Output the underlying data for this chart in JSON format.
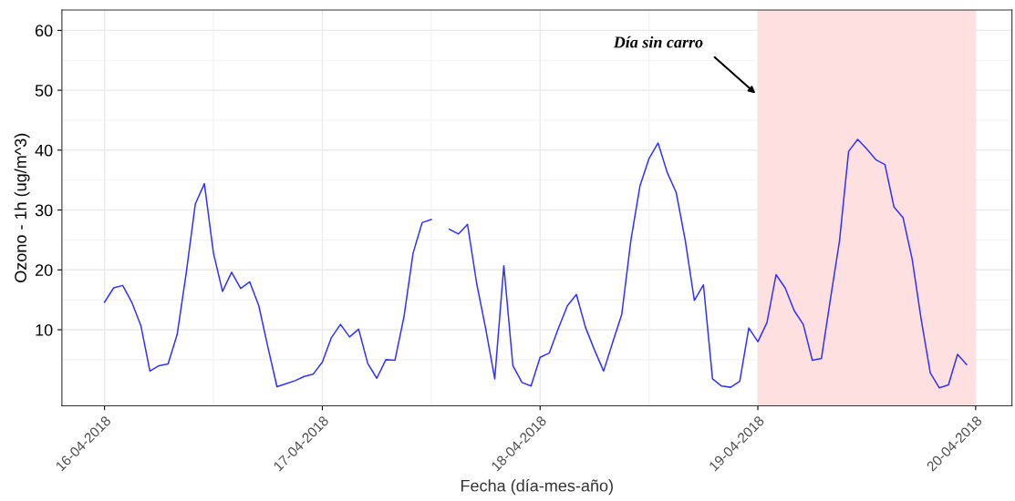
{
  "chart_data": {
    "type": "line",
    "xlabel": "Fecha (día-mes-año)",
    "ylabel": "Ozono - 1h (ug/m^3)",
    "x": [
      "2018-04-16T00:00",
      "2018-04-16T01:00",
      "2018-04-16T02:00",
      "2018-04-16T03:00",
      "2018-04-16T04:00",
      "2018-04-16T05:00",
      "2018-04-16T06:00",
      "2018-04-16T07:00",
      "2018-04-16T08:00",
      "2018-04-16T09:00",
      "2018-04-16T10:00",
      "2018-04-16T11:00",
      "2018-04-16T12:00",
      "2018-04-16T13:00",
      "2018-04-16T14:00",
      "2018-04-16T15:00",
      "2018-04-16T16:00",
      "2018-04-16T17:00",
      "2018-04-16T18:00",
      "2018-04-16T19:00",
      "2018-04-16T20:00",
      "2018-04-16T21:00",
      "2018-04-16T22:00",
      "2018-04-16T23:00",
      "2018-04-17T00:00",
      "2018-04-17T01:00",
      "2018-04-17T02:00",
      "2018-04-17T03:00",
      "2018-04-17T04:00",
      "2018-04-17T05:00",
      "2018-04-17T06:00",
      "2018-04-17T07:00",
      "2018-04-17T08:00",
      "2018-04-17T09:00",
      "2018-04-17T10:00",
      "2018-04-17T11:00",
      "2018-04-17T12:00",
      "2018-04-17T13:00",
      "2018-04-17T14:00",
      "2018-04-17T15:00",
      "2018-04-17T16:00",
      "2018-04-17T17:00",
      "2018-04-17T18:00",
      "2018-04-17T19:00",
      "2018-04-17T20:00",
      "2018-04-17T21:00",
      "2018-04-17T22:00",
      "2018-04-17T23:00",
      "2018-04-18T00:00",
      "2018-04-18T01:00",
      "2018-04-18T02:00",
      "2018-04-18T03:00",
      "2018-04-18T04:00",
      "2018-04-18T05:00",
      "2018-04-18T06:00",
      "2018-04-18T07:00",
      "2018-04-18T08:00",
      "2018-04-18T09:00",
      "2018-04-18T10:00",
      "2018-04-18T11:00",
      "2018-04-18T12:00",
      "2018-04-18T13:00",
      "2018-04-18T14:00",
      "2018-04-18T15:00",
      "2018-04-18T16:00",
      "2018-04-18T17:00",
      "2018-04-18T18:00",
      "2018-04-18T19:00",
      "2018-04-18T20:00",
      "2018-04-18T21:00",
      "2018-04-18T22:00",
      "2018-04-18T23:00",
      "2018-04-19T00:00",
      "2018-04-19T01:00",
      "2018-04-19T02:00",
      "2018-04-19T03:00",
      "2018-04-19T04:00",
      "2018-04-19T05:00",
      "2018-04-19T06:00",
      "2018-04-19T07:00",
      "2018-04-19T08:00",
      "2018-04-19T09:00",
      "2018-04-19T10:00",
      "2018-04-19T11:00",
      "2018-04-19T12:00",
      "2018-04-19T13:00",
      "2018-04-19T14:00",
      "2018-04-19T15:00",
      "2018-04-19T16:00",
      "2018-04-19T17:00",
      "2018-04-19T18:00",
      "2018-04-19T19:00",
      "2018-04-19T20:00",
      "2018-04-19T21:00",
      "2018-04-19T22:00",
      "2018-04-19T23:00"
    ],
    "series": [
      {
        "color": "#3333ff",
        "values": [
          14.6,
          17.0,
          17.4,
          14.6,
          10.7,
          3.1,
          4.0,
          4.3,
          9.2,
          19.5,
          31.0,
          34.4,
          22.8,
          16.4,
          19.6,
          16.9,
          18.0,
          14.0,
          7.1,
          0.5,
          1.0,
          1.5,
          2.2,
          2.6,
          4.6,
          8.7,
          10.9,
          8.8,
          10.1,
          4.4,
          1.9,
          5.0,
          4.9,
          12.2,
          22.8,
          27.9,
          28.4,
          null,
          26.8,
          26.0,
          27.6,
          17.8,
          10.2,
          1.8,
          20.7,
          4.0,
          1.2,
          0.6,
          5.4,
          6.1,
          10.2,
          14.0,
          15.9,
          10.4,
          6.6,
          3.1,
          7.9,
          12.6,
          24.9,
          34.0,
          38.6,
          41.2,
          36.3,
          32.9,
          24.9,
          14.9,
          17.5,
          1.8,
          0.6,
          0.4,
          1.4,
          10.3,
          8.0,
          11.2,
          19.2,
          17.0,
          13.2,
          10.9,
          4.9,
          5.2,
          15.2,
          24.9,
          39.8,
          41.8,
          40.2,
          38.4,
          37.6,
          30.5,
          28.7,
          21.8,
          11.7,
          2.8,
          0.3,
          0.8,
          5.9,
          4.2
        ]
      }
    ],
    "xlim": [
      "2018-04-15T19:18",
      "2018-04-20T04:00"
    ],
    "xticks": [
      {
        "value": "2018-04-16",
        "label": "16-04-2018"
      },
      {
        "value": "2018-04-17",
        "label": "17-04-2018"
      },
      {
        "value": "2018-04-18",
        "label": "18-04-2018"
      },
      {
        "value": "2018-04-19",
        "label": "19-04-2018"
      },
      {
        "value": "2018-04-20",
        "label": "20-04-2018"
      }
    ],
    "ylim": [
      -2.7,
      63.4
    ],
    "yticks": [
      10,
      20,
      30,
      40,
      50,
      60
    ],
    "grid": true,
    "line_style": "solid",
    "marker": "none",
    "bands": [
      {
        "axis": "x",
        "from": "2018-04-19",
        "to": "2018-04-20",
        "color": "#ffe0e0"
      }
    ],
    "annotations": [
      "Día sin carro"
    ]
  }
}
